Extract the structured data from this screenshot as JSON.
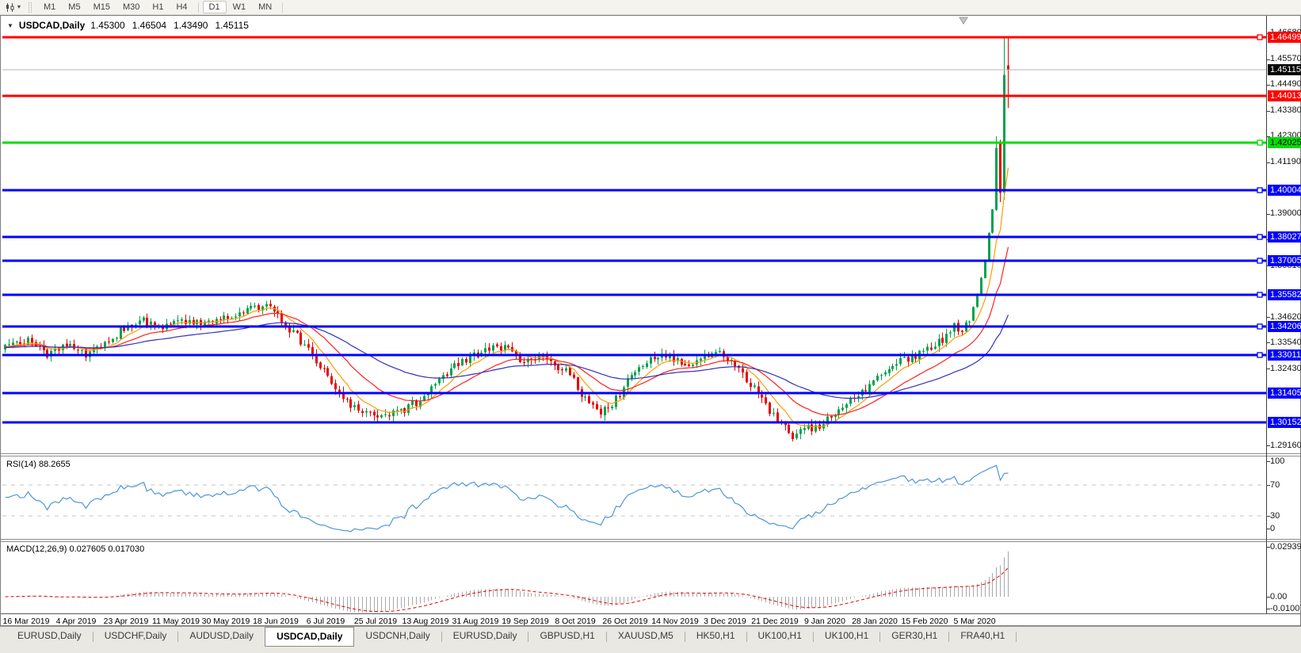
{
  "toolbar": {
    "timeframe_groups": [
      [
        "M1",
        "M5",
        "M15",
        "M30",
        "H1",
        "H4"
      ],
      [
        "D1",
        "W1",
        "MN"
      ]
    ],
    "active_timeframe": "D1"
  },
  "chart": {
    "symbol_title": "USDCAD,Daily",
    "open": "1.45300",
    "high": "1.46504",
    "low": "1.43490",
    "close": "1.45115"
  },
  "price_axis": {
    "ticks": [
      {
        "label": "1.46680",
        "price": 1.4668
      },
      {
        "label": "1.45570",
        "price": 1.4557
      },
      {
        "label": "1.44490",
        "price": 1.4449
      },
      {
        "label": "1.43380",
        "price": 1.4338
      },
      {
        "label": "1.42300",
        "price": 1.423
      },
      {
        "label": "1.41190",
        "price": 1.4119
      },
      {
        "label": "1.39000",
        "price": 1.39
      },
      {
        "label": "1.37920",
        "price": 1.3792
      },
      {
        "label": "1.36810",
        "price": 1.3681
      },
      {
        "label": "1.34620",
        "price": 1.3462
      },
      {
        "label": "1.33540",
        "price": 1.3354
      },
      {
        "label": "1.32430",
        "price": 1.3243
      },
      {
        "label": "1.29160",
        "price": 1.2916
      }
    ]
  },
  "levels": [
    {
      "label": "1.46499",
      "price": 1.46499,
      "color": "#FF0000",
      "badge_color": "#FF0000",
      "text_color": "#FFFFFF",
      "width": 3,
      "marker": true,
      "kind": "resistance-line"
    },
    {
      "label": "1.45115",
      "price": 1.45115,
      "color": "#B4B4B4",
      "badge_color": "#000000",
      "text_color": "#FFFFFF",
      "width": 1,
      "marker": false,
      "kind": "current-price-line"
    },
    {
      "label": "1.44013",
      "price": 1.44013,
      "color": "#FF0000",
      "badge_color": "#FF0000",
      "text_color": "#FFFFFF",
      "width": 3,
      "marker": false,
      "kind": "resistance-line"
    },
    {
      "label": "1.42025",
      "price": 1.42025,
      "color": "#00DD00",
      "badge_color": "#00DD00",
      "text_color": "#000000",
      "width": 3,
      "marker": true,
      "kind": "level-line"
    },
    {
      "label": "1.40004",
      "price": 1.40004,
      "color": "#0000FF",
      "badge_color": "#0000FF",
      "text_color": "#FFFFFF",
      "width": 3,
      "marker": true,
      "kind": "support-line"
    },
    {
      "label": "1.38027",
      "price": 1.38027,
      "color": "#0000FF",
      "badge_color": "#0000FF",
      "text_color": "#FFFFFF",
      "width": 3,
      "marker": true,
      "kind": "support-line"
    },
    {
      "label": "1.37005",
      "price": 1.37005,
      "color": "#0000FF",
      "badge_color": "#0000FF",
      "text_color": "#FFFFFF",
      "width": 3,
      "marker": true,
      "kind": "support-line"
    },
    {
      "label": "1.35582",
      "price": 1.35582,
      "color": "#0000FF",
      "badge_color": "#0000FF",
      "text_color": "#FFFFFF",
      "width": 3,
      "marker": true,
      "kind": "support-line"
    },
    {
      "label": "1.34206",
      "price": 1.34206,
      "color": "#0000FF",
      "badge_color": "#0000FF",
      "text_color": "#FFFFFF",
      "width": 3,
      "marker": true,
      "kind": "support-line"
    },
    {
      "label": "1.33011",
      "price": 1.33011,
      "color": "#0000FF",
      "badge_color": "#0000FF",
      "text_color": "#FFFFFF",
      "width": 3,
      "marker": true,
      "kind": "support-line"
    },
    {
      "label": "1.31405",
      "price": 1.31405,
      "color": "#0000FF",
      "badge_color": "#0000FF",
      "text_color": "#FFFFFF",
      "width": 3,
      "marker": false,
      "kind": "support-line"
    },
    {
      "label": "1.30152",
      "price": 1.30152,
      "color": "#0000FF",
      "badge_color": "#0000FF",
      "text_color": "#FFFFFF",
      "width": 3,
      "marker": false,
      "kind": "support-line"
    }
  ],
  "chart_data": {
    "type": "candlestick",
    "symbol": "USDCAD",
    "period": "Daily",
    "last_candle": {
      "open": 1.453,
      "high": 1.46504,
      "low": 1.4349,
      "close": 1.45115
    },
    "up_color": "#00A24C",
    "down_color": "#E60000",
    "candle_count": 262,
    "close_anchors": [
      [
        0,
        1.3335
      ],
      [
        6,
        1.336
      ],
      [
        11,
        1.3305
      ],
      [
        16,
        1.3345
      ],
      [
        21,
        1.33
      ],
      [
        26,
        1.334
      ],
      [
        31,
        1.342
      ],
      [
        36,
        1.3445
      ],
      [
        41,
        1.3415
      ],
      [
        46,
        1.345
      ],
      [
        52,
        1.3425
      ],
      [
        57,
        1.346
      ],
      [
        63,
        1.3495
      ],
      [
        68,
        1.3505
      ],
      [
        72,
        1.345
      ],
      [
        77,
        1.336
      ],
      [
        82,
        1.325
      ],
      [
        87,
        1.314
      ],
      [
        92,
        1.306
      ],
      [
        97,
        1.304
      ],
      [
        102,
        1.3055
      ],
      [
        107,
        1.31
      ],
      [
        112,
        1.319
      ],
      [
        117,
        1.3255
      ],
      [
        122,
        1.33
      ],
      [
        127,
        1.333
      ],
      [
        131,
        1.334
      ],
      [
        135,
        1.327
      ],
      [
        139,
        1.33
      ],
      [
        143,
        1.3255
      ],
      [
        147,
        1.323
      ],
      [
        150,
        1.313
      ],
      [
        154,
        1.306
      ],
      [
        158,
        1.3085
      ],
      [
        162,
        1.319
      ],
      [
        166,
        1.327
      ],
      [
        170,
        1.3305
      ],
      [
        174,
        1.328
      ],
      [
        178,
        1.3255
      ],
      [
        182,
        1.3295
      ],
      [
        186,
        1.331
      ],
      [
        190,
        1.326
      ],
      [
        194,
        1.318
      ],
      [
        198,
        1.308
      ],
      [
        202,
        1.3
      ],
      [
        205,
        1.296
      ],
      [
        208,
        1.2985
      ],
      [
        212,
        1.3005
      ],
      [
        216,
        1.305
      ],
      [
        220,
        1.31
      ],
      [
        224,
        1.315
      ],
      [
        228,
        1.3215
      ],
      [
        232,
        1.327
      ],
      [
        236,
        1.3295
      ],
      [
        240,
        1.332
      ],
      [
        244,
        1.337
      ],
      [
        247,
        1.343
      ],
      [
        249,
        1.34
      ],
      [
        251,
        1.3455
      ],
      [
        253,
        1.3555
      ],
      [
        255,
        1.37
      ],
      [
        256,
        1.382
      ],
      [
        257,
        1.392
      ],
      [
        258,
        1.418
      ],
      [
        259,
        1.399
      ],
      [
        260,
        1.449
      ],
      [
        261,
        1.45115
      ]
    ],
    "overrides": {
      "258": {
        "h": 1.423
      },
      "259": {
        "o": 1.42,
        "h": 1.4215,
        "l": 1.395
      },
      "260": {
        "h": 1.46499,
        "l": 1.396
      },
      "261": {
        "o": 1.453,
        "h": 1.46504,
        "l": 1.4349,
        "c": 1.45115
      }
    },
    "moving_averages": [
      {
        "period": 8,
        "color": "#FF9C00",
        "name": "fast-ma"
      },
      {
        "period": 21,
        "color": "#FF2020",
        "name": "medium-ma"
      },
      {
        "period": 55,
        "color": "#3030C0",
        "name": "slow-ma"
      }
    ],
    "indicators": {
      "rsi": {
        "label": "RSI(14) 88.2655",
        "period": 14,
        "current": 88.2655,
        "levels": [
          70,
          30
        ],
        "axis_labels": [
          "100",
          "70",
          "30",
          "0"
        ],
        "color": "#4D96D9",
        "range": [
          0,
          100
        ]
      },
      "macd": {
        "label": "MACD(12,26,9) 0.027605 0.017030",
        "fast": 12,
        "slow": 26,
        "signal": 9,
        "macd_value": 0.027605,
        "signal_value": 0.01703,
        "axis_labels": [
          "0.029399",
          "0.00",
          "-0.010075"
        ],
        "axis_max": 0.029399,
        "axis_min": -0.010075,
        "histogram_color": "#A8A8A8",
        "signal_color": "#E60000"
      }
    }
  },
  "date_axis": {
    "labels": [
      "16 Mar 2019",
      "4 Apr 2019",
      "23 Apr 2019",
      "11 May 2019",
      "30 May 2019",
      "18 Jun 2019",
      "6 Jul 2019",
      "25 Jul 2019",
      "13 Aug 2019",
      "31 Aug 2019",
      "19 Sep 2019",
      "8 Oct 2019",
      "26 Oct 2019",
      "14 Nov 2019",
      "3 Dec 2019",
      "21 Dec 2019",
      "9 Jan 2020",
      "28 Jan 2020",
      "15 Feb 2020",
      "5 Mar 2020"
    ]
  },
  "tabs": [
    {
      "label": "EURUSD,Daily",
      "active": false
    },
    {
      "label": "USDCHF,Daily",
      "active": false
    },
    {
      "label": "AUDUSD,Daily",
      "active": false
    },
    {
      "label": "USDCAD,Daily",
      "active": true
    },
    {
      "label": "USDCNH,Daily",
      "active": false
    },
    {
      "label": "EURUSD,Daily",
      "active": false
    },
    {
      "label": "GBPUSD,H1",
      "active": false
    },
    {
      "label": "XAUUSD,M5",
      "active": false
    },
    {
      "label": "HK50,H1",
      "active": false
    },
    {
      "label": "UK100,H1",
      "active": false
    },
    {
      "label": "UK100,H1",
      "active": false
    },
    {
      "label": "GER30,H1",
      "active": false
    },
    {
      "label": "FRA40,H1",
      "active": false
    }
  ]
}
